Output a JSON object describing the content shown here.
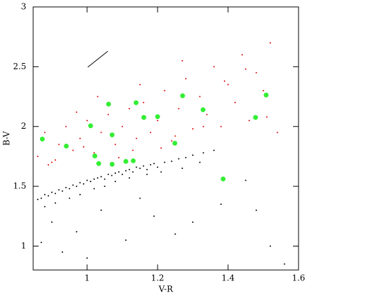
{
  "chart_data": {
    "type": "scatter",
    "x_label": "V-R",
    "y_label": "B-V",
    "xlim": [
      0.847,
      1.6
    ],
    "ylim": [
      0.8,
      3
    ],
    "xticks": [
      1,
      1.2,
      1.4,
      1.6
    ],
    "yticks": [
      1,
      1.5,
      2,
      2.5,
      3
    ],
    "grid": false,
    "series": [
      {
        "color": "#000000",
        "x": [
          0.86,
          0.87,
          0.88,
          0.89,
          0.9,
          0.91,
          0.92,
          0.93,
          0.94,
          0.95,
          0.96,
          0.97,
          0.98,
          0.99,
          1.0,
          1.01,
          1.02,
          1.03,
          1.04,
          1.05,
          1.06,
          1.07,
          1.08,
          1.09,
          1.1,
          1.11,
          1.12,
          1.13,
          1.14,
          1.15,
          1.16,
          1.17,
          1.18,
          1.19,
          1.2,
          1.22,
          1.24,
          1.26,
          1.28,
          1.3,
          1.33,
          1.36,
          0.88,
          0.91,
          0.95,
          0.98,
          1.02,
          1.05,
          1.08,
          1.12,
          1.17,
          1.21,
          1.27,
          1.32,
          0.9,
          0.97,
          1.04,
          1.11,
          1.19,
          1.25,
          1.38,
          1.45,
          1.52,
          0.93,
          1.0,
          1.15,
          1.3,
          1.48,
          1.56,
          0.87
        ],
        "values": [
          1.39,
          1.4,
          1.43,
          1.42,
          1.45,
          1.44,
          1.47,
          1.46,
          1.49,
          1.48,
          1.51,
          1.5,
          1.53,
          1.52,
          1.55,
          1.54,
          1.56,
          1.57,
          1.58,
          1.56,
          1.6,
          1.59,
          1.61,
          1.62,
          1.6,
          1.63,
          1.64,
          1.62,
          1.66,
          1.65,
          1.67,
          1.64,
          1.68,
          1.69,
          1.66,
          1.7,
          1.71,
          1.73,
          1.74,
          1.76,
          1.78,
          1.8,
          1.33,
          1.36,
          1.4,
          1.43,
          1.48,
          1.5,
          1.54,
          1.57,
          1.6,
          1.62,
          1.65,
          1.7,
          1.2,
          1.12,
          1.3,
          1.05,
          1.25,
          1.1,
          1.35,
          1.55,
          1.0,
          0.95,
          0.9,
          1.4,
          1.2,
          1.3,
          0.85,
          1.03
        ]
      },
      {
        "color": "#e00000",
        "x": [
          0.86,
          0.88,
          0.9,
          0.92,
          0.94,
          0.96,
          0.98,
          1.0,
          1.02,
          1.04,
          1.06,
          1.08,
          1.1,
          1.12,
          1.14,
          1.16,
          1.18,
          1.2,
          1.22,
          1.24,
          1.26,
          1.28,
          1.3,
          1.32,
          1.34,
          1.36,
          1.38,
          1.4,
          1.42,
          1.44,
          1.46,
          1.48,
          1.5,
          1.52,
          1.54,
          0.91,
          0.97,
          1.03,
          1.09,
          1.15,
          1.21,
          1.27,
          1.33,
          1.39,
          1.45,
          1.51,
          0.89,
          0.99,
          1.13,
          1.25
        ],
        "values": [
          1.75,
          1.95,
          1.7,
          1.85,
          2.0,
          1.8,
          1.9,
          2.05,
          1.78,
          1.95,
          2.1,
          1.85,
          2.0,
          2.15,
          1.9,
          2.2,
          1.95,
          2.05,
          2.3,
          1.88,
          2.15,
          2.4,
          1.98,
          2.25,
          2.1,
          2.5,
          2.0,
          2.35,
          2.2,
          2.6,
          2.05,
          2.45,
          2.3,
          2.7,
          1.95,
          1.72,
          2.12,
          2.25,
          1.74,
          2.35,
          1.82,
          2.55,
          2.0,
          2.38,
          2.48,
          2.08,
          1.68,
          1.83,
          1.8,
          1.92
        ]
      },
      {
        "color": "#33ee33",
        "x": [
          0.873,
          0.941,
          1.01,
          1.061,
          1.139,
          1.161,
          1.2,
          1.071,
          1.022,
          1.033,
          1.071,
          1.11,
          1.131,
          1.249,
          1.271,
          1.329,
          1.386,
          1.478,
          1.508
        ],
        "values": [
          1.895,
          1.836,
          2.006,
          2.187,
          2.199,
          2.076,
          2.082,
          1.93,
          1.754,
          1.69,
          1.684,
          1.708,
          1.713,
          1.86,
          2.257,
          2.14,
          1.561,
          2.076,
          2.263
        ]
      }
    ]
  }
}
